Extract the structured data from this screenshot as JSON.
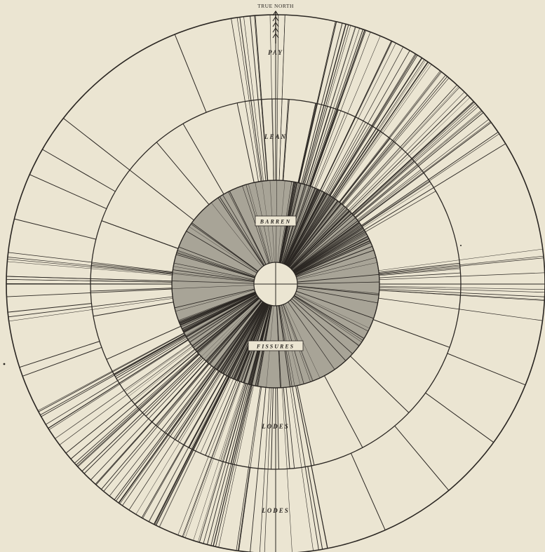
{
  "labels": {
    "north": "TRUE NORTH",
    "pay": "PAY",
    "lean": "LEAN",
    "barren": "BARREN",
    "fissures": "FISSURES",
    "lodes_inner": "LODES",
    "lodes_outer": "LODES"
  },
  "colors": {
    "paper": "#ebe5d2",
    "ink": "#2a2622",
    "barren_fill": "#8d8a80"
  }
}
